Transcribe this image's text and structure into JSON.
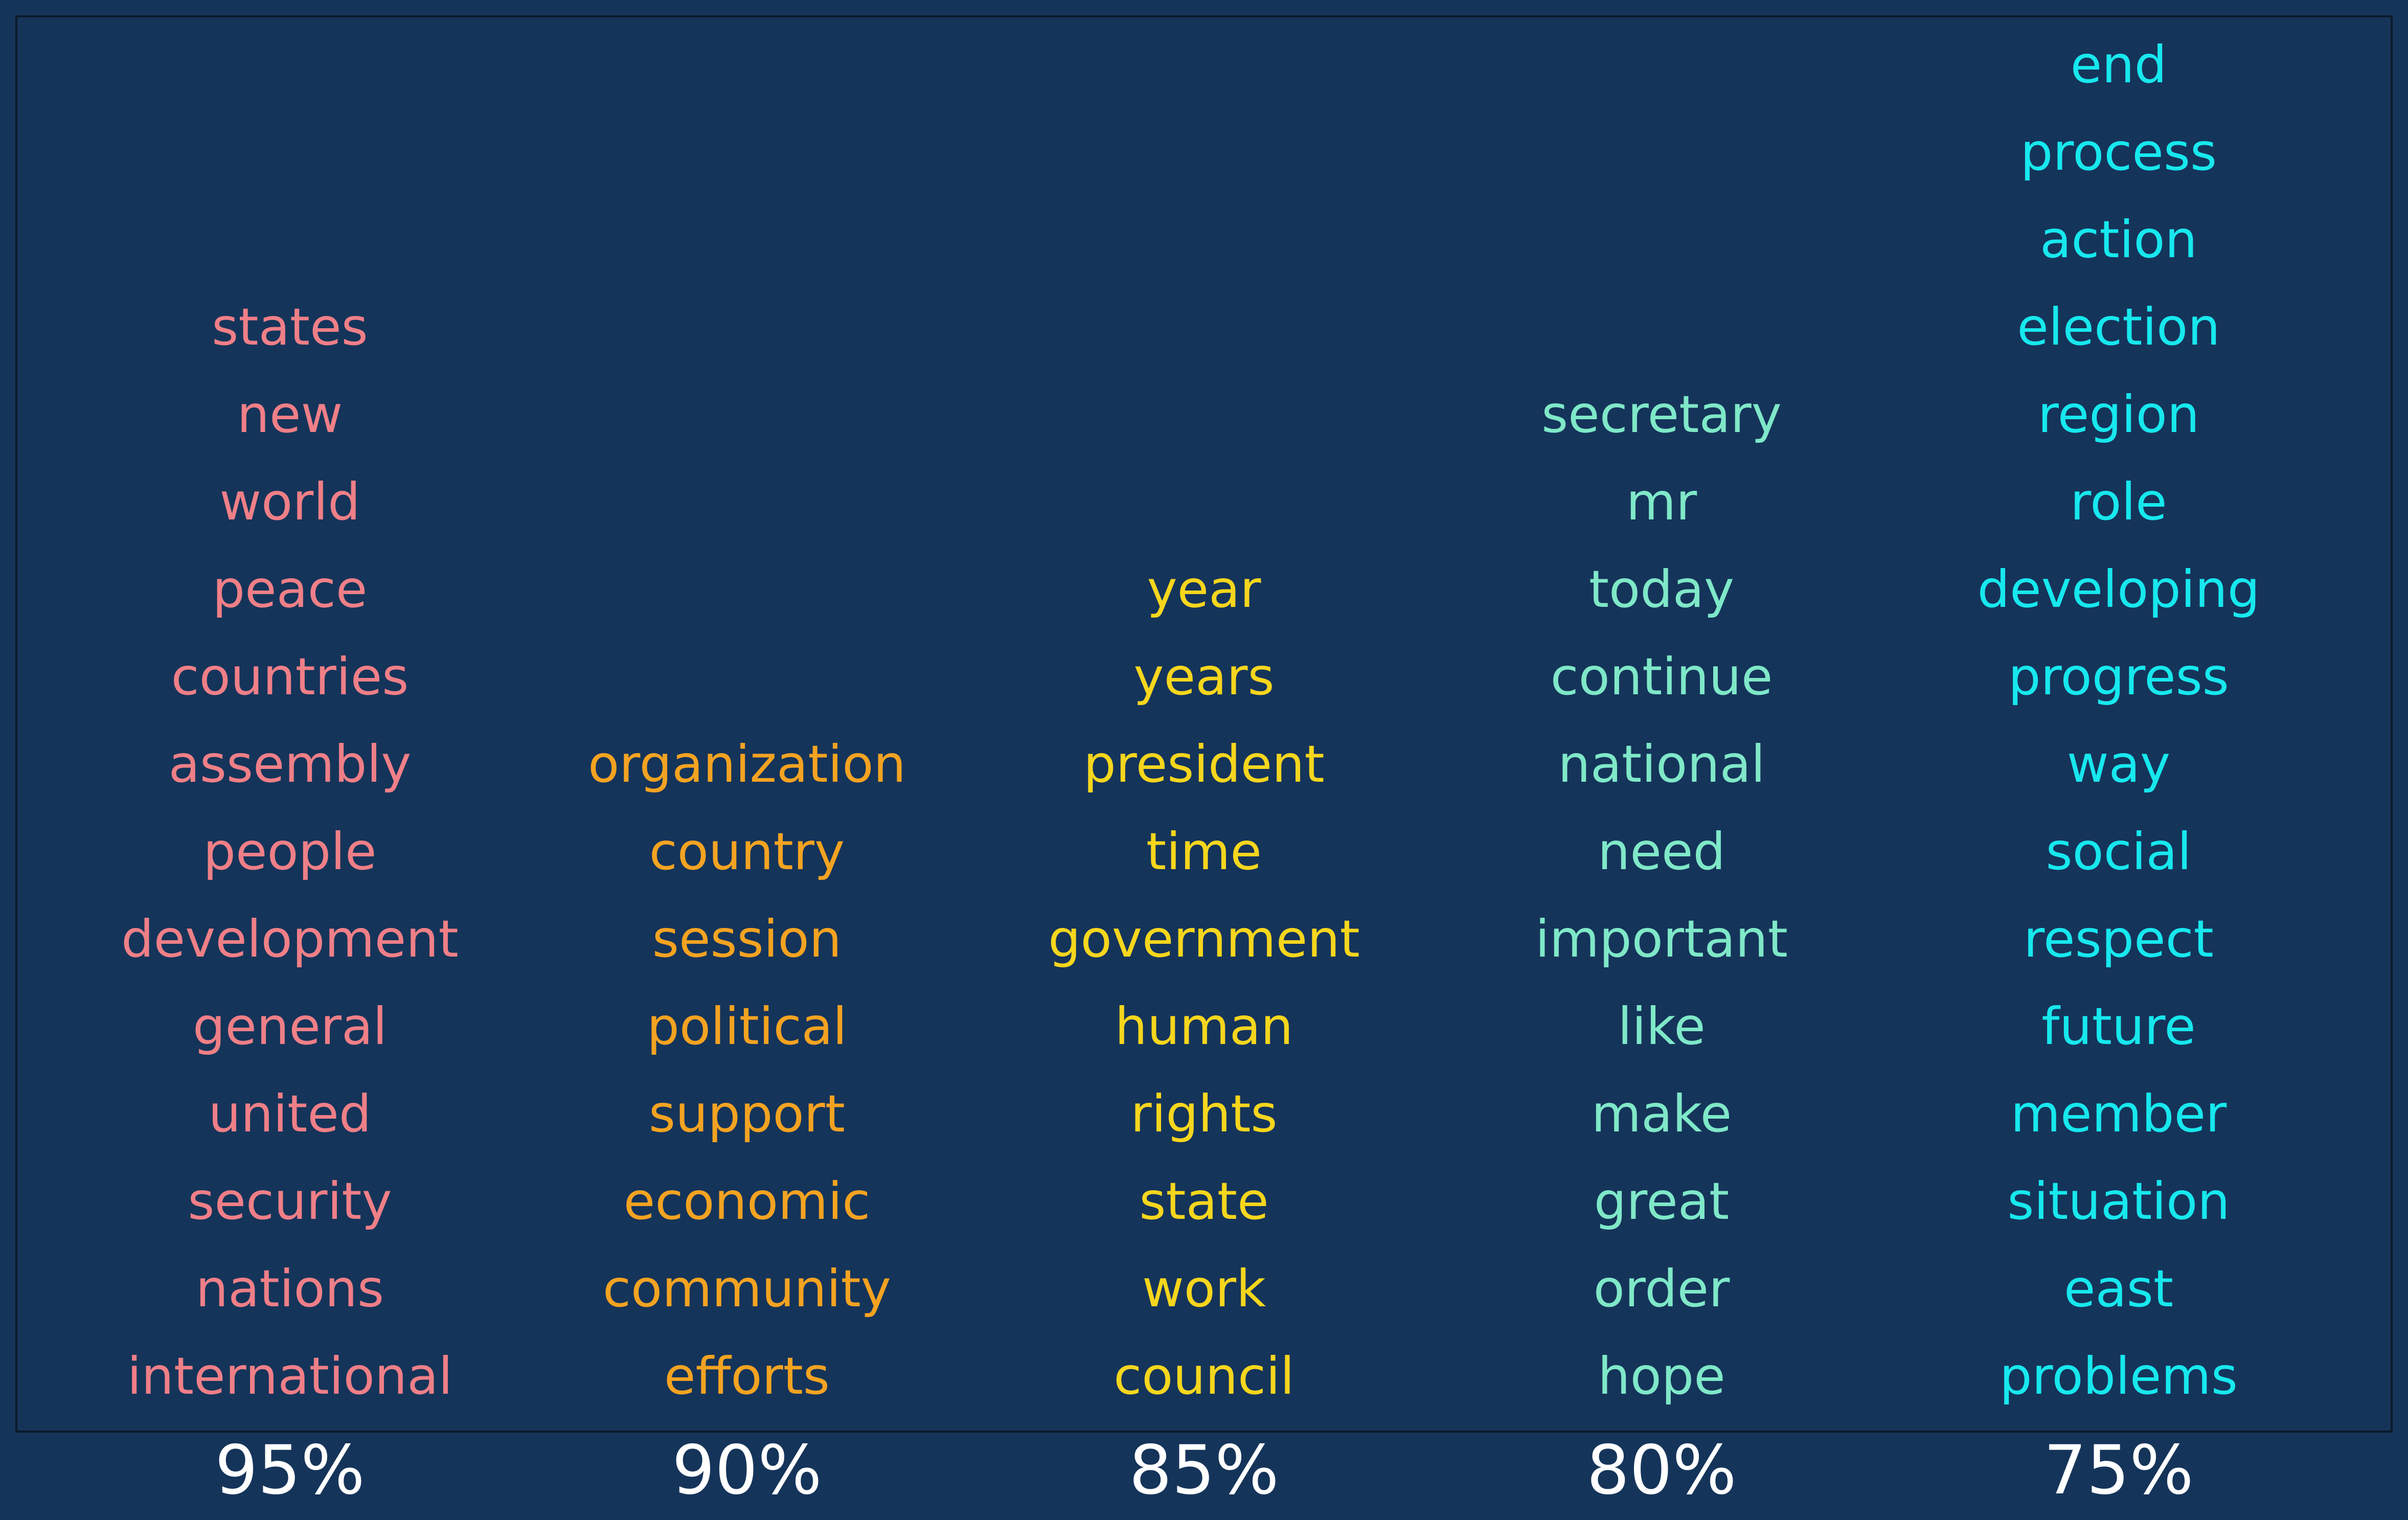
{
  "chart_data": {
    "type": "table",
    "columns": [
      {
        "label": "95%",
        "color": "#ef7f87",
        "words": [
          "states",
          "new",
          "world",
          "peace",
          "countries",
          "assembly",
          "people",
          "development",
          "general",
          "united",
          "security",
          "nations",
          "international"
        ]
      },
      {
        "label": "90%",
        "color": "#f4a321",
        "words": [
          "organization",
          "country",
          "session",
          "political",
          "support",
          "economic",
          "community",
          "efforts"
        ]
      },
      {
        "label": "85%",
        "color": "#f6d61d",
        "words": [
          "year",
          "years",
          "president",
          "time",
          "government",
          "human",
          "rights",
          "state",
          "work",
          "council"
        ]
      },
      {
        "label": "80%",
        "color": "#7fe8c8",
        "words": [
          "secretary",
          "mr",
          "today",
          "continue",
          "national",
          "need",
          "important",
          "like",
          "make",
          "great",
          "order",
          "hope"
        ]
      },
      {
        "label": "75%",
        "color": "#17e8ee",
        "words": [
          "end",
          "process",
          "action",
          "election",
          "region",
          "role",
          "developing",
          "progress",
          "way",
          "social",
          "respect",
          "future",
          "member",
          "situation",
          "east",
          "problems"
        ]
      }
    ],
    "background_color": "#15345a",
    "label_color": "#ffffff"
  }
}
